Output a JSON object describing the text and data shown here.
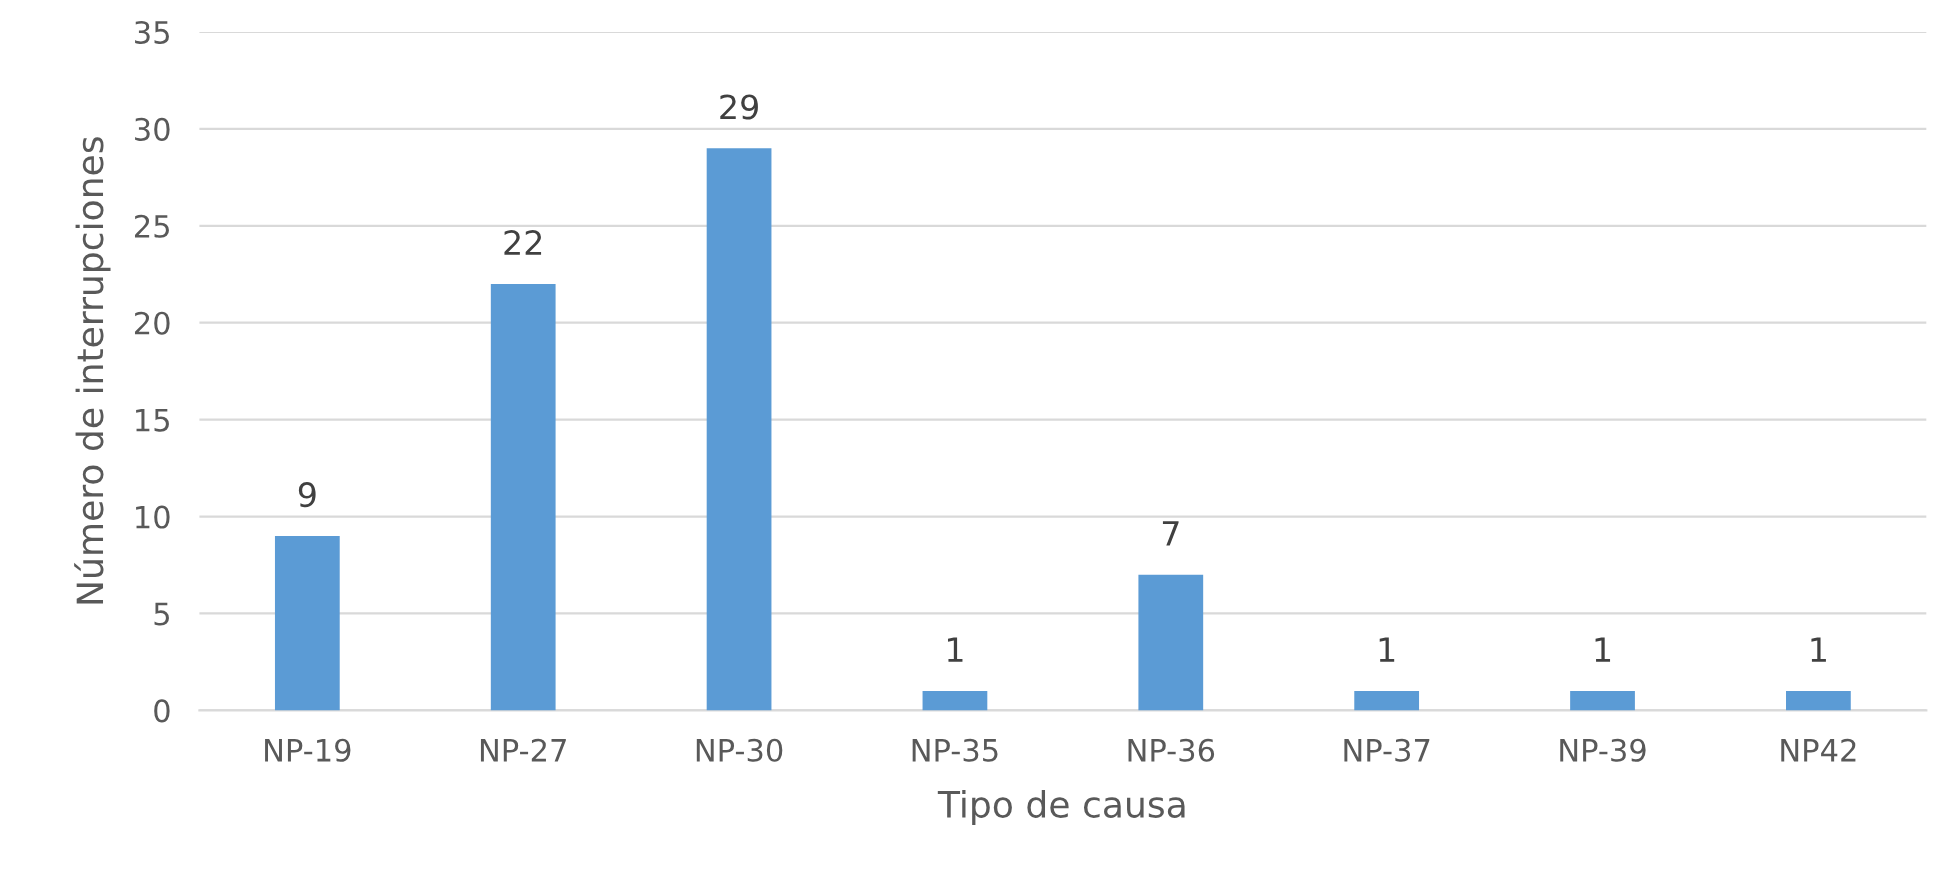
{
  "chart_data": {
    "type": "bar",
    "xlabel": "Tipo de causa",
    "ylabel": "Número de interrupciones",
    "categories": [
      "NP-19",
      "NP-27",
      "NP-30",
      "NP-35",
      "NP-36",
      "NP-37",
      "NP-39",
      "NP42"
    ],
    "values": [
      9,
      22,
      29,
      1,
      7,
      1,
      1,
      1
    ],
    "color": "#5b9bd5",
    "ylim": [
      0,
      35
    ],
    "yticks": [
      0,
      5,
      10,
      15,
      20,
      25,
      30,
      35
    ],
    "grid": "y",
    "data_labels": true
  }
}
